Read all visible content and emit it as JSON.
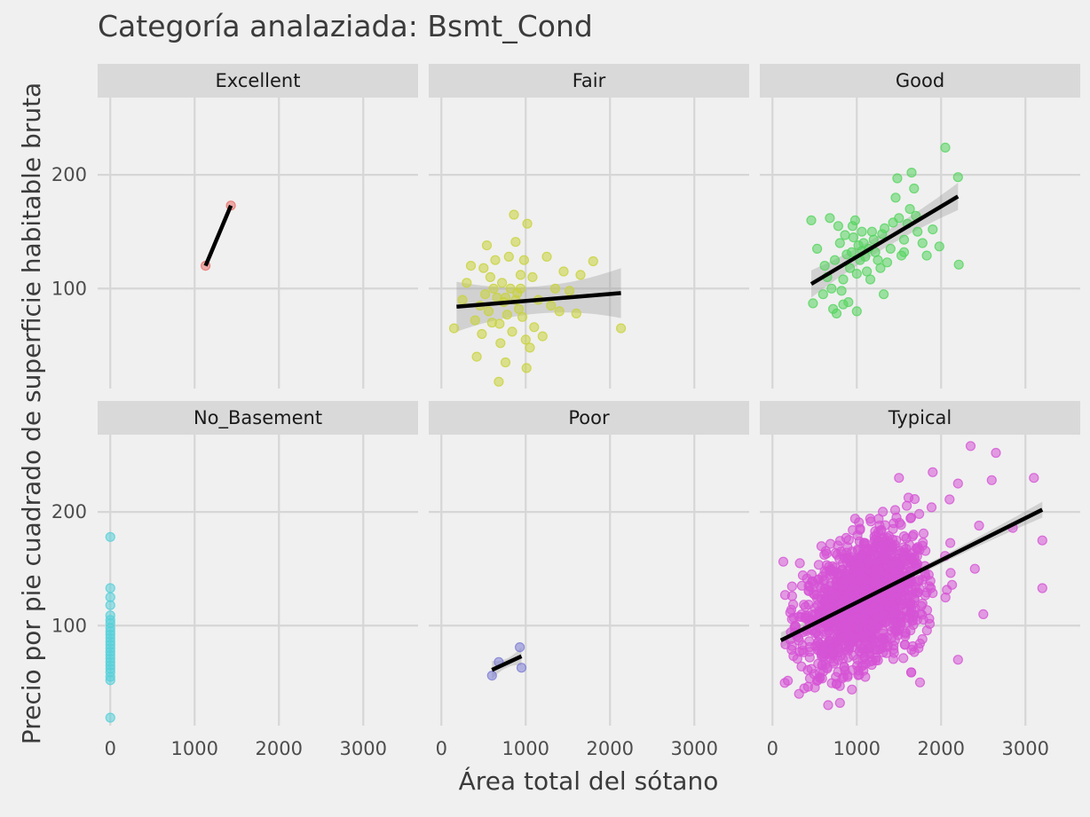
{
  "chart_data": {
    "type": "scatter",
    "title": "Categoría analaziada: Bsmt_Cond",
    "xlabel": "Área total del sótano",
    "ylabel": "Precio por pie cuadrado de superficie habitable bruta",
    "xlim": [
      -150,
      3650
    ],
    "ylim": [
      12,
      268
    ],
    "x_ticks": [
      0,
      1000,
      2000,
      3000
    ],
    "y_ticks": [
      100,
      200
    ],
    "grid": true,
    "facets": [
      {
        "name": "Excellent",
        "color": "#e8706a",
        "points": [
          [
            1130,
            120
          ],
          [
            1430,
            173
          ]
        ],
        "fit": {
          "x": [
            1130,
            1430
          ],
          "y": [
            120,
            173
          ],
          "band": [
            0,
            0
          ]
        }
      },
      {
        "name": "Fair",
        "color": "#c8d23a",
        "points": [
          [
            150,
            65
          ],
          [
            250,
            90
          ],
          [
            300,
            105
          ],
          [
            350,
            120
          ],
          [
            400,
            72
          ],
          [
            420,
            40
          ],
          [
            460,
            85
          ],
          [
            480,
            60
          ],
          [
            500,
            118
          ],
          [
            520,
            95
          ],
          [
            540,
            138
          ],
          [
            560,
            80
          ],
          [
            580,
            110
          ],
          [
            600,
            70
          ],
          [
            620,
            100
          ],
          [
            640,
            125
          ],
          [
            660,
            92
          ],
          [
            680,
            18
          ],
          [
            700,
            52
          ],
          [
            720,
            105
          ],
          [
            740,
            88
          ],
          [
            760,
            35
          ],
          [
            780,
            77
          ],
          [
            800,
            128
          ],
          [
            820,
            100
          ],
          [
            840,
            62
          ],
          [
            860,
            165
          ],
          [
            880,
            141
          ],
          [
            900,
            96
          ],
          [
            920,
            82
          ],
          [
            940,
            112
          ],
          [
            960,
            75
          ],
          [
            980,
            125
          ],
          [
            1000,
            55
          ],
          [
            1010,
            30
          ],
          [
            1020,
            157
          ],
          [
            1050,
            48
          ],
          [
            1080,
            110
          ],
          [
            1100,
            66
          ],
          [
            1150,
            90
          ],
          [
            1200,
            58
          ],
          [
            1250,
            128
          ],
          [
            1300,
            85
          ],
          [
            1350,
            100
          ],
          [
            1400,
            80
          ],
          [
            1450,
            115
          ],
          [
            1520,
            98
          ],
          [
            1600,
            78
          ],
          [
            1650,
            112
          ],
          [
            1800,
            124
          ],
          [
            2130,
            65
          ],
          [
            880,
            90
          ],
          [
            760,
            92
          ],
          [
            690,
            69
          ],
          [
            940,
            100
          ]
        ],
        "fit": {
          "x": [
            180,
            2130
          ],
          "y": [
            84,
            96
          ],
          "band": [
            12,
            22
          ]
        }
      },
      {
        "name": "Good",
        "color": "#55d45f",
        "points": [
          [
            460,
            160
          ],
          [
            480,
            87
          ],
          [
            530,
            135
          ],
          [
            600,
            95
          ],
          [
            620,
            120
          ],
          [
            650,
            110
          ],
          [
            680,
            162
          ],
          [
            700,
            100
          ],
          [
            720,
            82
          ],
          [
            740,
            125
          ],
          [
            760,
            78
          ],
          [
            780,
            155
          ],
          [
            800,
            140
          ],
          [
            820,
            98
          ],
          [
            840,
            108
          ],
          [
            860,
            147
          ],
          [
            880,
            130
          ],
          [
            900,
            88
          ],
          [
            920,
            118
          ],
          [
            940,
            132
          ],
          [
            960,
            145
          ],
          [
            980,
            160
          ],
          [
            1000,
            113
          ],
          [
            1020,
            138
          ],
          [
            1040,
            125
          ],
          [
            1060,
            150
          ],
          [
            1080,
            140
          ],
          [
            1100,
            128
          ],
          [
            1120,
            115
          ],
          [
            1140,
            135
          ],
          [
            1160,
            108
          ],
          [
            1180,
            150
          ],
          [
            1200,
            143
          ],
          [
            1220,
            132
          ],
          [
            1250,
            125
          ],
          [
            1280,
            118
          ],
          [
            1300,
            148
          ],
          [
            1330,
            153
          ],
          [
            1360,
            123
          ],
          [
            1400,
            135
          ],
          [
            1430,
            158
          ],
          [
            1460,
            180
          ],
          [
            1480,
            197
          ],
          [
            1500,
            162
          ],
          [
            1530,
            129
          ],
          [
            1560,
            143
          ],
          [
            1600,
            157
          ],
          [
            1630,
            170
          ],
          [
            1650,
            202
          ],
          [
            1680,
            188
          ],
          [
            1700,
            164
          ],
          [
            1720,
            150
          ],
          [
            1780,
            140
          ],
          [
            1830,
            129
          ],
          [
            1900,
            152
          ],
          [
            1980,
            137
          ],
          [
            2050,
            224
          ],
          [
            2200,
            198
          ],
          [
            2210,
            121
          ],
          [
            1320,
            95
          ],
          [
            1000,
            80
          ],
          [
            840,
            86
          ],
          [
            950,
            155
          ],
          [
            1060,
            133
          ],
          [
            1560,
            132
          ]
        ],
        "fit": {
          "x": [
            460,
            2200
          ],
          "y": [
            104,
            181
          ],
          "band": [
            7,
            12
          ]
        }
      },
      {
        "name": "No_Basement",
        "color": "#55cfd9",
        "points": [
          [
            0,
            178
          ],
          [
            0,
            133
          ],
          [
            0,
            125
          ],
          [
            0,
            118
          ],
          [
            0,
            109
          ],
          [
            0,
            105
          ],
          [
            0,
            102
          ],
          [
            0,
            98
          ],
          [
            0,
            95
          ],
          [
            0,
            92
          ],
          [
            0,
            89
          ],
          [
            0,
            86
          ],
          [
            0,
            83
          ],
          [
            0,
            80
          ],
          [
            0,
            77
          ],
          [
            0,
            74
          ],
          [
            0,
            71
          ],
          [
            0,
            68
          ],
          [
            0,
            65
          ],
          [
            0,
            62
          ],
          [
            0,
            59
          ],
          [
            0,
            55
          ],
          [
            0,
            52
          ],
          [
            0,
            19
          ]
        ],
        "fit": null
      },
      {
        "name": "Poor",
        "color": "#7c7cd4",
        "points": [
          [
            600,
            56
          ],
          [
            680,
            68
          ],
          [
            930,
            81
          ],
          [
            950,
            63
          ]
        ],
        "fit": {
          "x": [
            600,
            950
          ],
          "y": [
            61,
            73
          ],
          "band": [
            4,
            8
          ]
        }
      },
      {
        "name": "Typical",
        "color": "#d653d6",
        "cloud": {
          "n": 1400,
          "x_center": 1080,
          "x_sd": 380,
          "x_min": 80,
          "x_max": 3200,
          "resid_sd": 27,
          "y_min": 30,
          "y_max": 262
        },
        "outliers": [
          [
            2350,
            258
          ],
          [
            2650,
            252
          ],
          [
            3100,
            230
          ],
          [
            3200,
            175
          ],
          [
            3200,
            133
          ],
          [
            2500,
            110
          ],
          [
            2400,
            150
          ],
          [
            2450,
            188
          ],
          [
            2200,
            225
          ],
          [
            1900,
            235
          ],
          [
            1750,
            50
          ],
          [
            2200,
            70
          ],
          [
            800,
            32
          ],
          [
            660,
            30
          ],
          [
            150,
            127
          ],
          [
            2850,
            186
          ],
          [
            2600,
            228
          ],
          [
            2100,
            211
          ],
          [
            1500,
            230
          ]
        ],
        "fit": {
          "x": [
            100,
            3200
          ],
          "y": [
            87,
            202
          ],
          "band": [
            3,
            7
          ]
        }
      }
    ]
  }
}
